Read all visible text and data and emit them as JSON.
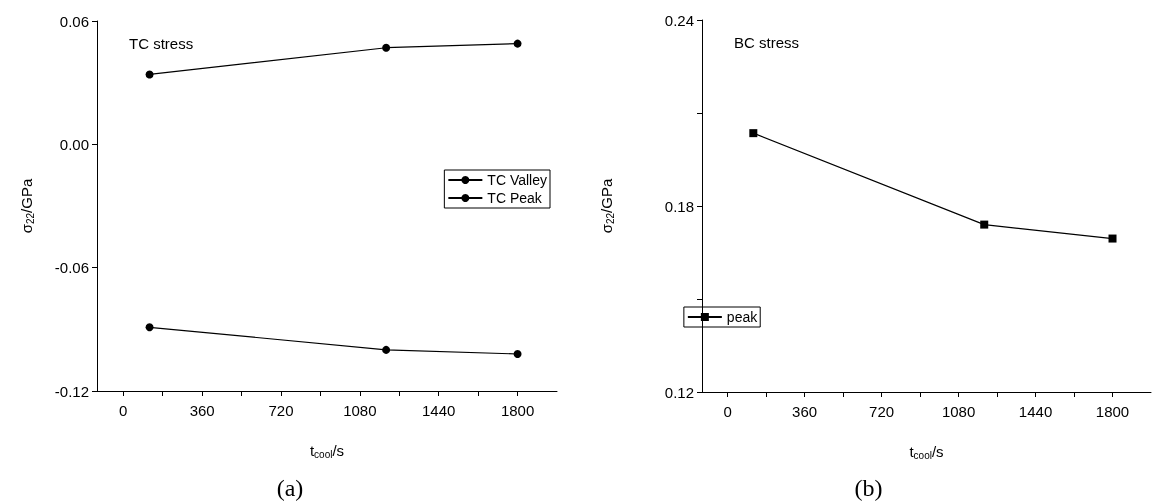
{
  "chart_data": [
    {
      "type": "line",
      "title": "TC stress",
      "xlabel": "t$_{cool}$/s",
      "ylabel": "σ$_{22}$/GPa",
      "annotations": [
        "(a)"
      ],
      "x": [
        120,
        1200,
        1800
      ],
      "series": [
        {
          "name": "TC Valley",
          "color": "#000000",
          "values": [
            0.034,
            0.047,
            0.049
          ]
        },
        {
          "name": "TC Peak",
          "color": "#000000",
          "values": [
            -0.089,
            -0.1,
            -0.102
          ]
        }
      ],
      "xlim": [
        -120,
        1980
      ],
      "xticks": [
        0,
        {
          "value": 180,
          "label": null
        },
        360,
        {
          "value": 540,
          "label": null
        },
        720,
        {
          "value": 900,
          "label": null
        },
        1080,
        {
          "value": 1260,
          "label": null
        },
        1440,
        {
          "value": 1620,
          "label": null
        },
        1800
      ],
      "ylim": [
        -0.12,
        0.06
      ],
      "yticks": [
        {
          "value": -0.12,
          "label": "-0.12"
        },
        {
          "value": -0.06,
          "label": "-0.06"
        },
        {
          "value": 0,
          "label": "0.00"
        },
        {
          "value": 0.06,
          "label": "0.06"
        }
      ],
      "grid": false,
      "legend": "right",
      "marker": "circle",
      "line_style": "solid"
    },
    {
      "type": "line",
      "title": "BC stress",
      "xlabel": "t$_{cool}$/s",
      "ylabel": "σ$_{22}$/GPa",
      "annotations": [
        "(b)"
      ],
      "x": [
        120,
        1200,
        1800
      ],
      "series": [
        {
          "name": "peak",
          "color": "#000000",
          "values": [
            0.2035,
            0.174,
            0.1695
          ]
        }
      ],
      "xlim": [
        -120,
        1980
      ],
      "xticks": [
        0,
        {
          "value": 180,
          "label": null
        },
        360,
        {
          "value": 540,
          "label": null
        },
        720,
        {
          "value": 900,
          "label": null
        },
        1080,
        {
          "value": 1260,
          "label": null
        },
        1440,
        {
          "value": 1620,
          "label": null
        },
        1800
      ],
      "ylim": [
        0.12,
        0.24
      ],
      "yticks": [
        0.12,
        {
          "value": 0.15,
          "label": null
        },
        0.18,
        {
          "value": 0.21,
          "label": null
        },
        0.24
      ],
      "grid": false,
      "legend": "bottom left",
      "marker": "square",
      "line_style": "solid"
    }
  ]
}
